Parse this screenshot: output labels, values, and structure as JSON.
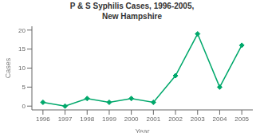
{
  "chart_data": {
    "type": "line",
    "title": "P & S Syphilis Cases, 1996-2005,\nNew Hampshire",
    "xlabel": "Year",
    "ylabel": "Cases",
    "x": [
      1996,
      1997,
      1998,
      1999,
      2000,
      2001,
      2002,
      2003,
      2004,
      2005
    ],
    "values": [
      1,
      0,
      2,
      1,
      2,
      1,
      8,
      19,
      5,
      16
    ],
    "color": "#00A86B",
    "marker": "diamond",
    "xlim": [
      1995.5,
      2005.5
    ],
    "xticks": [
      1996,
      1997,
      1998,
      1999,
      2000,
      2001,
      2002,
      2003,
      2004,
      2005
    ],
    "ylim": [
      -1,
      21
    ],
    "yticks": [
      0,
      5,
      10,
      15,
      20
    ],
    "grid": false
  }
}
